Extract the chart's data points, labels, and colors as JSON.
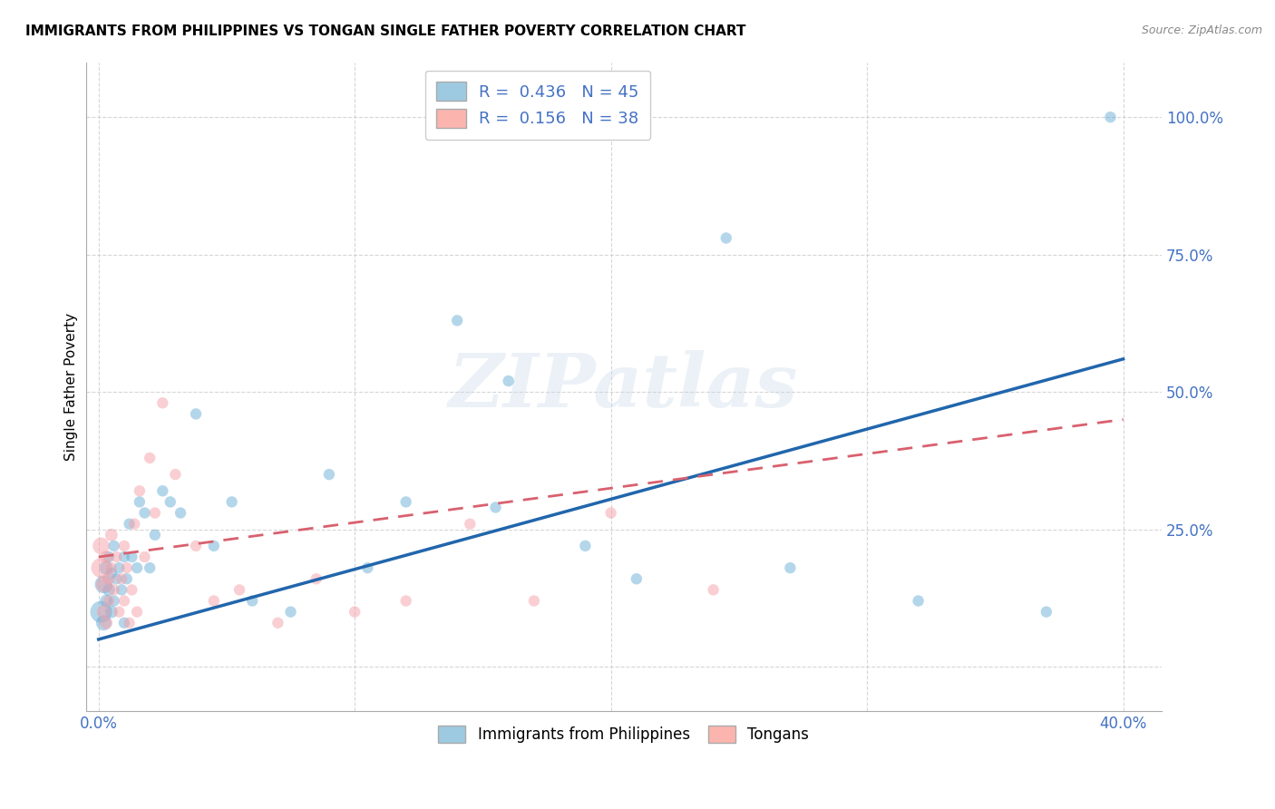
{
  "title": "IMMIGRANTS FROM PHILIPPINES VS TONGAN SINGLE FATHER POVERTY CORRELATION CHART",
  "source": "Source: ZipAtlas.com",
  "xlabel_label": "Immigrants from Philippines",
  "ylabel_label": "Single Father Poverty",
  "xlim": [
    -0.005,
    0.415
  ],
  "ylim": [
    -0.08,
    1.1
  ],
  "blue_R": 0.436,
  "blue_N": 45,
  "pink_R": 0.156,
  "pink_N": 38,
  "blue_color": "#6baed6",
  "pink_color": "#f4a0a8",
  "blue_line_color": "#2166ac",
  "pink_line_color": "#d9606e",
  "legend_blue_color": "#9ecae1",
  "legend_pink_color": "#fbb4ae",
  "watermark": "ZIPatlas",
  "blue_line_x": [
    0.0,
    0.4
  ],
  "blue_line_y": [
    0.05,
    0.56
  ],
  "pink_line_x": [
    0.0,
    0.4
  ],
  "pink_line_y": [
    0.2,
    0.45
  ],
  "blue_scatter_x": [
    0.001,
    0.002,
    0.002,
    0.003,
    0.003,
    0.004,
    0.004,
    0.005,
    0.005,
    0.006,
    0.006,
    0.007,
    0.008,
    0.009,
    0.01,
    0.01,
    0.011,
    0.012,
    0.013,
    0.015,
    0.016,
    0.018,
    0.02,
    0.022,
    0.025,
    0.028,
    0.032,
    0.038,
    0.045,
    0.052,
    0.06,
    0.075,
    0.09,
    0.105,
    0.12,
    0.14,
    0.16,
    0.19,
    0.21,
    0.245,
    0.155,
    0.27,
    0.32,
    0.37,
    0.395
  ],
  "blue_scatter_y": [
    0.1,
    0.15,
    0.08,
    0.18,
    0.12,
    0.14,
    0.2,
    0.1,
    0.17,
    0.12,
    0.22,
    0.16,
    0.18,
    0.14,
    0.2,
    0.08,
    0.16,
    0.26,
    0.2,
    0.18,
    0.3,
    0.28,
    0.18,
    0.24,
    0.32,
    0.3,
    0.28,
    0.46,
    0.22,
    0.3,
    0.12,
    0.1,
    0.35,
    0.18,
    0.3,
    0.63,
    0.52,
    0.22,
    0.16,
    0.78,
    0.29,
    0.18,
    0.12,
    0.1,
    1.0
  ],
  "blue_scatter_size": [
    300,
    200,
    150,
    120,
    100,
    100,
    80,
    100,
    80,
    80,
    80,
    80,
    80,
    80,
    80,
    80,
    80,
    80,
    80,
    80,
    80,
    80,
    80,
    80,
    80,
    80,
    80,
    80,
    80,
    80,
    80,
    80,
    80,
    80,
    80,
    80,
    80,
    80,
    80,
    80,
    80,
    80,
    80,
    80,
    80
  ],
  "pink_scatter_x": [
    0.001,
    0.001,
    0.002,
    0.002,
    0.003,
    0.003,
    0.004,
    0.004,
    0.005,
    0.005,
    0.006,
    0.007,
    0.008,
    0.009,
    0.01,
    0.01,
    0.011,
    0.012,
    0.013,
    0.014,
    0.015,
    0.016,
    0.018,
    0.02,
    0.022,
    0.025,
    0.03,
    0.038,
    0.045,
    0.055,
    0.07,
    0.085,
    0.1,
    0.12,
    0.145,
    0.17,
    0.2,
    0.24
  ],
  "pink_scatter_y": [
    0.18,
    0.22,
    0.15,
    0.1,
    0.2,
    0.08,
    0.16,
    0.12,
    0.24,
    0.18,
    0.14,
    0.2,
    0.1,
    0.16,
    0.12,
    0.22,
    0.18,
    0.08,
    0.14,
    0.26,
    0.1,
    0.32,
    0.2,
    0.38,
    0.28,
    0.48,
    0.35,
    0.22,
    0.12,
    0.14,
    0.08,
    0.16,
    0.1,
    0.12,
    0.26,
    0.12,
    0.28,
    0.14
  ],
  "pink_scatter_size": [
    250,
    180,
    150,
    120,
    100,
    100,
    100,
    80,
    100,
    80,
    80,
    80,
    80,
    80,
    80,
    80,
    80,
    80,
    80,
    80,
    80,
    80,
    80,
    80,
    80,
    80,
    80,
    80,
    80,
    80,
    80,
    80,
    80,
    80,
    80,
    80,
    80,
    80
  ]
}
